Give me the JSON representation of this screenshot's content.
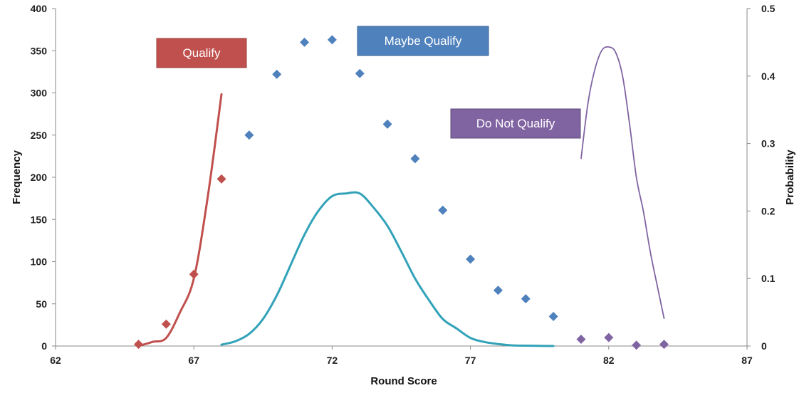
{
  "chart_data": {
    "type": "scatter",
    "xlabel": "Round Score",
    "ylabel": "Frequency",
    "y2label": "Probability",
    "xlim": [
      62,
      87
    ],
    "ylim": [
      0,
      400
    ],
    "y2lim": [
      0,
      0.5
    ],
    "x_ticks": [
      "62",
      "67",
      "72",
      "77",
      "82",
      "87"
    ],
    "y_ticks": [
      "0",
      "50",
      "100",
      "150",
      "200",
      "250",
      "300",
      "350",
      "400"
    ],
    "y2_ticks": [
      "0",
      "0.1",
      "0.2",
      "0.3",
      "0.4",
      "0.5"
    ],
    "grid": false,
    "colors": {
      "qualify": "#c0504d",
      "maybe": "#4f81bd",
      "donot": "#8064a2",
      "normal_curve": "#31a2b8"
    },
    "annotations": {
      "qualify": "Qualify",
      "maybe": "Maybe Qualify",
      "donot": "Do Not Qualify"
    },
    "series": [
      {
        "kind": "scatter",
        "axis": "y",
        "color": "#c0504d",
        "x": [
          65,
          66,
          67,
          68
        ],
        "y": [
          2,
          26,
          85,
          198
        ]
      },
      {
        "kind": "scatter",
        "axis": "y",
        "color": "#4f81bd",
        "x": [
          69,
          70,
          71,
          72,
          73,
          74,
          75,
          76,
          77,
          78,
          79,
          80
        ],
        "y": [
          250,
          322,
          360,
          363,
          323,
          263,
          222,
          161,
          103,
          66,
          56,
          35
        ]
      },
      {
        "kind": "scatter",
        "axis": "y",
        "color": "#8064a2",
        "x": [
          81,
          82,
          83,
          84
        ],
        "y": [
          8,
          10,
          1,
          2
        ]
      },
      {
        "kind": "line",
        "axis": "y2",
        "color": "#c0504d",
        "x": [
          65,
          65.5,
          66,
          66.5,
          67,
          67.5,
          68
        ],
        "y": [
          0,
          0.006,
          0.012,
          0.05,
          0.1,
          0.22,
          0.373
        ]
      },
      {
        "kind": "line",
        "axis": "y2",
        "color": "#31a2b8",
        "x": [
          68,
          68.5,
          69,
          69.5,
          70,
          70.5,
          71,
          71.5,
          72,
          72.5,
          73,
          73.5,
          74,
          74.5,
          75,
          75.5,
          76,
          76.5,
          77,
          77.5,
          78,
          78.5,
          79,
          80
        ],
        "y": [
          0.002,
          0.007,
          0.018,
          0.04,
          0.075,
          0.12,
          0.165,
          0.2,
          0.222,
          0.226,
          0.226,
          0.205,
          0.178,
          0.14,
          0.1,
          0.068,
          0.04,
          0.026,
          0.012,
          0.006,
          0.003,
          0.001,
          0.0005,
          0
        ]
      },
      {
        "kind": "line",
        "axis": "y2",
        "color": "#8064a2",
        "x": [
          81,
          81.25,
          81.5,
          81.75,
          82,
          82.25,
          82.5,
          82.75,
          83,
          83.25,
          83.5,
          83.75,
          84
        ],
        "y": [
          0.278,
          0.36,
          0.41,
          0.438,
          0.443,
          0.435,
          0.4,
          0.33,
          0.25,
          0.2,
          0.14,
          0.09,
          0.041
        ]
      }
    ]
  }
}
